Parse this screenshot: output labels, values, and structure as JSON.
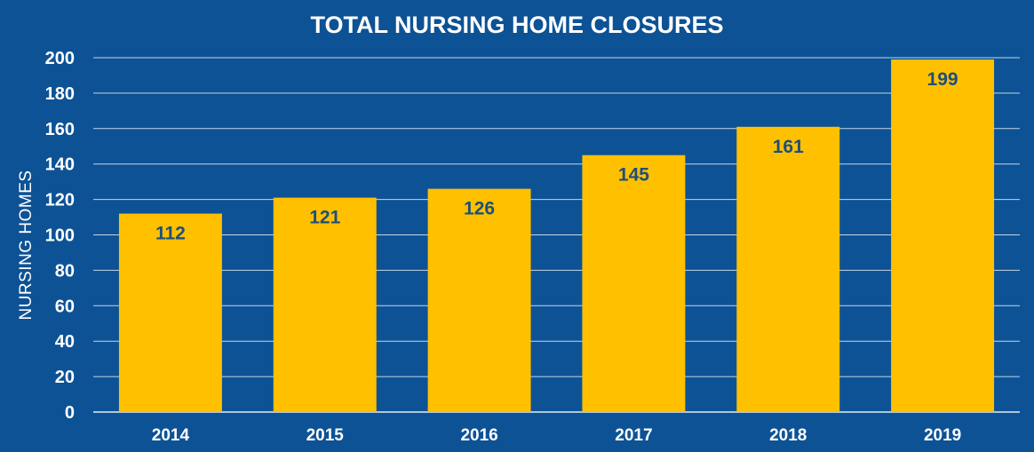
{
  "colors": {
    "background": "#0d5295",
    "bar": "#ffc000",
    "data_label": "#1d4f7d",
    "text": "#ffffff"
  },
  "chart_data": {
    "type": "bar",
    "title": "TOTAL NURSING HOME CLOSURES",
    "xlabel": "",
    "ylabel": "NURSING HOMES",
    "categories": [
      "2014",
      "2015",
      "2016",
      "2017",
      "2018",
      "2019"
    ],
    "values": [
      112,
      121,
      126,
      145,
      161,
      199
    ],
    "ylim": [
      0,
      200
    ],
    "yticks": [
      0,
      20,
      40,
      60,
      80,
      100,
      120,
      140,
      160,
      180,
      200
    ],
    "grid": true,
    "legend": "none",
    "data_labels": true
  }
}
